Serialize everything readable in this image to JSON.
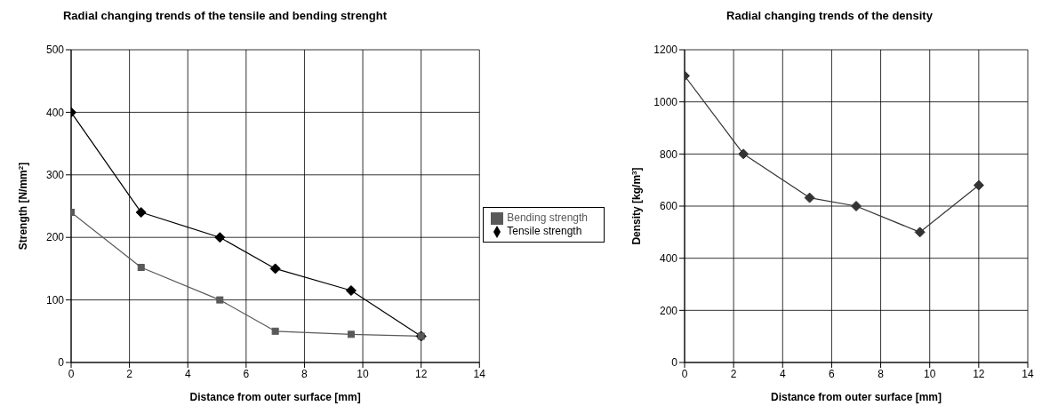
{
  "chart_data": [
    {
      "type": "line",
      "title": "Radial changing trends of the tensile and bending strenght",
      "xlabel": "Distance from outer surface [mm]",
      "ylabel": "Strength [N/mm$^{2}$]",
      "x": [
        0,
        2.4,
        5.1,
        7,
        9.6,
        12
      ],
      "series": [
        {
          "name": "Tensile strength",
          "color": "#000000",
          "marker": "diamond",
          "values": [
            400,
            240,
            200,
            150,
            115,
            42
          ]
        },
        {
          "name": "Bending strength",
          "color": "#595959",
          "marker": "square",
          "values": [
            240,
            152,
            100,
            50,
            45,
            42
          ]
        }
      ],
      "xlim": [
        0,
        14
      ],
      "xticks": [
        0,
        2,
        4,
        6,
        8,
        10,
        12,
        14
      ],
      "ylim": [
        0,
        500
      ],
      "yticks": [
        0,
        100,
        200,
        300,
        400,
        500
      ],
      "grid": true,
      "legend": "right"
    },
    {
      "type": "line",
      "title": "Radial changing trends of the density",
      "xlabel": "Distance from outer surface [mm]",
      "ylabel": "Density [kg/m$^{3}$]",
      "x": [
        0,
        2.4,
        5.1,
        7,
        9.6,
        12
      ],
      "series": [
        {
          "color": "#333333",
          "marker": "diamond",
          "values": [
            1100,
            800,
            632,
            600,
            500,
            680
          ]
        }
      ],
      "xlim": [
        0,
        14
      ],
      "xticks": [
        0,
        2,
        4,
        6,
        8,
        10,
        12,
        14
      ],
      "ylim": [
        0,
        1200
      ],
      "yticks": [
        0,
        200,
        400,
        600,
        800,
        1000,
        1200
      ],
      "grid": true,
      "legend": false
    }
  ]
}
